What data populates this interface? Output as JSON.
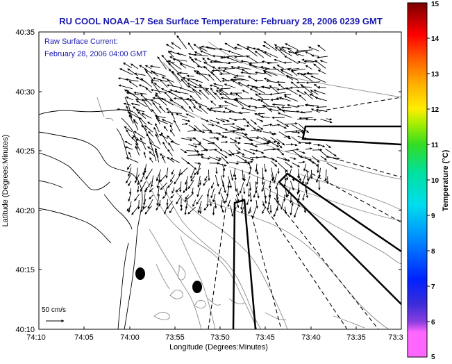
{
  "title": "RU COOL  NOAA–17  Sea Surface Temperature:  February 28, 2006 0239 GMT",
  "overlay_label_1": "Raw Surface Current:",
  "overlay_label_2": "February 28, 2006 04:00 GMT",
  "scale_label": "50 cm/s",
  "x_axis_label": "Longitude (Degrees:Minutes)",
  "y_axis_label": "Latitude (Degrees:Minutes)",
  "colorbar_label": "Temperature (°C)",
  "x_ticks": [
    "74:10",
    "74:05",
    "74:00",
    "73:55",
    "73:50",
    "73:45",
    "73:40",
    "73:35",
    "73:3"
  ],
  "y_ticks": [
    "40:35",
    "40:30",
    "40:25",
    "40:20",
    "40:15",
    "40:10"
  ],
  "colorbar_ticks": [
    "15",
    "14",
    "13",
    "12",
    "11",
    "10",
    "9",
    "8",
    "7",
    "6",
    "5"
  ],
  "colors": {
    "title": "#1a1ab0",
    "overlay": "#1a1ab0",
    "axes": "#000000",
    "contour": "#8c8c8c",
    "colormap": [
      "#ff66ff",
      "#6a1fd0",
      "#0033ff",
      "#00aaff",
      "#00e5d0",
      "#28e028",
      "#d8ee00",
      "#ffc000",
      "#ff6000",
      "#ff0000",
      "#8b0000"
    ]
  },
  "legend": {
    "position": "bottom-left"
  }
}
